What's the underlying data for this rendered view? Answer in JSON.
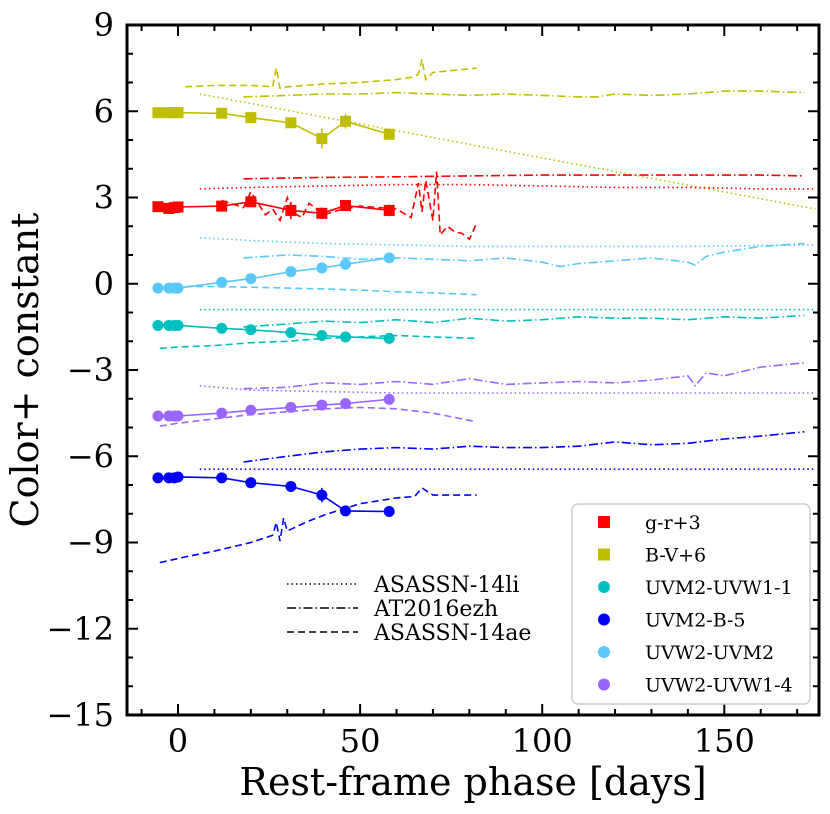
{
  "chart_data": {
    "type": "line",
    "xlabel": "Rest-frame phase [days]",
    "ylabel": "Color+ constant",
    "xlim": [
      -14,
      176
    ],
    "ylim": [
      -15,
      9
    ],
    "xticks": [
      0,
      50,
      100,
      150
    ],
    "yticks": [
      -15,
      -12,
      -9,
      -6,
      -3,
      0,
      3,
      6,
      9
    ],
    "xtick_labels": [
      "0",
      "50",
      "100",
      "150"
    ],
    "ytick_labels": [
      "−15",
      "−12",
      "−9",
      "−6",
      "−3",
      "0",
      "3",
      "6",
      "9"
    ],
    "colors": {
      "g-r": "#ff0000",
      "B-V": "#bfbf00",
      "UVM2-UVW1": "#00bfbf",
      "UVM2-B": "#0000ff",
      "UVW2-UVM2": "#5ac8fa",
      "UVW2-UVW1": "#9966ff"
    },
    "series": [
      {
        "name": "g-r+3",
        "key": "g-r",
        "marker": "square",
        "x": [
          -5.5,
          -2.5,
          -1,
          0,
          12,
          20,
          31,
          39.5,
          46,
          58
        ],
        "y": [
          2.68,
          2.62,
          2.65,
          2.67,
          2.7,
          2.85,
          2.55,
          2.45,
          2.72,
          2.55
        ],
        "yerr": [
          0.1,
          0.1,
          0.1,
          0.1,
          0.15,
          0.15,
          0.3,
          0.2,
          0.15,
          0.2
        ]
      },
      {
        "name": "B-V+6",
        "key": "B-V",
        "marker": "square",
        "x": [
          -5.5,
          -2.5,
          -1,
          0,
          12,
          20,
          31,
          39.5,
          46,
          58
        ],
        "y": [
          5.95,
          5.95,
          5.95,
          5.95,
          5.93,
          5.78,
          5.6,
          5.05,
          5.65,
          5.2
        ],
        "yerr": [
          0.1,
          0.1,
          0.1,
          0.1,
          0.1,
          0.15,
          0.15,
          0.35,
          0.25,
          0.2
        ]
      },
      {
        "name": "UVM2-UVW1-1",
        "key": "UVM2-UVW1",
        "marker": "circle",
        "x": [
          -5.5,
          -2.5,
          -1,
          0,
          12,
          20,
          31,
          39.5,
          46,
          58
        ],
        "y": [
          -1.45,
          -1.45,
          -1.45,
          -1.45,
          -1.55,
          -1.6,
          -1.7,
          -1.8,
          -1.85,
          -1.9
        ],
        "yerr": [
          0.05,
          0.05,
          0.05,
          0.05,
          0.1,
          0.1,
          0.12,
          0.12,
          0.12,
          0.12
        ]
      },
      {
        "name": "UVM2-B-5",
        "key": "UVM2-B",
        "marker": "circle",
        "x": [
          -5.5,
          -2.5,
          -1,
          0,
          12,
          20,
          31,
          39.5,
          46,
          58
        ],
        "y": [
          -6.75,
          -6.75,
          -6.75,
          -6.72,
          -6.75,
          -6.92,
          -7.05,
          -7.35,
          -7.9,
          -7.92
        ],
        "yerr": [
          0.05,
          0.05,
          0.05,
          0.05,
          0.1,
          0.1,
          0.12,
          0.25,
          0.12,
          0.12
        ]
      },
      {
        "name": "UVW2-UVM2",
        "key": "UVW2-UVM2",
        "marker": "circle",
        "x": [
          -5.5,
          -2.5,
          -1,
          0,
          12,
          20,
          31,
          39.5,
          46,
          58
        ],
        "y": [
          -0.15,
          -0.15,
          -0.15,
          -0.15,
          0.05,
          0.18,
          0.42,
          0.55,
          0.68,
          0.9
        ],
        "yerr": [
          0.05,
          0.05,
          0.05,
          0.05,
          0.08,
          0.08,
          0.1,
          0.1,
          0.1,
          0.1
        ]
      },
      {
        "name": "UVW2-UVW1-4",
        "key": "UVW2-UVW1",
        "marker": "circle",
        "x": [
          -5.5,
          -2.5,
          -1,
          0,
          12,
          20,
          31,
          39.5,
          46,
          58
        ],
        "y": [
          -4.6,
          -4.6,
          -4.6,
          -4.6,
          -4.5,
          -4.4,
          -4.3,
          -4.22,
          -4.17,
          -4.02
        ],
        "yerr": [
          0.05,
          0.05,
          0.05,
          0.05,
          0.08,
          0.08,
          0.1,
          0.1,
          0.1,
          0.1
        ]
      }
    ],
    "comparison_curves": [
      {
        "object": "ASASSN-14li",
        "style": "dotted",
        "key": "B-V",
        "x": [
          6,
          175
        ],
        "y": [
          6.6,
          2.6
        ]
      },
      {
        "object": "ASASSN-14li",
        "style": "dotted",
        "key": "g-r",
        "x": [
          6,
          20,
          40,
          60,
          80,
          100,
          120,
          140,
          160,
          175
        ],
        "y": [
          3.3,
          3.35,
          3.4,
          3.45,
          3.45,
          3.4,
          3.35,
          3.35,
          3.3,
          3.3
        ]
      },
      {
        "object": "ASASSN-14li",
        "style": "dotted",
        "key": "UVW2-UVM2",
        "x": [
          6,
          20,
          40,
          60,
          80,
          100,
          120,
          140,
          175
        ],
        "y": [
          1.6,
          1.5,
          1.4,
          1.35,
          1.3,
          1.3,
          1.3,
          1.3,
          1.35
        ]
      },
      {
        "object": "ASASSN-14li",
        "style": "dotted",
        "key": "UVM2-UVW1",
        "x": [
          6,
          50,
          100,
          150,
          175
        ],
        "y": [
          -0.9,
          -0.9,
          -0.9,
          -0.9,
          -0.9
        ]
      },
      {
        "object": "ASASSN-14li",
        "style": "dotted",
        "key": "UVW2-UVW1",
        "x": [
          6,
          20,
          40,
          60,
          80,
          100,
          140,
          175
        ],
        "y": [
          -3.55,
          -3.7,
          -3.75,
          -3.8,
          -3.8,
          -3.8,
          -3.8,
          -3.8
        ]
      },
      {
        "object": "ASASSN-14li",
        "style": "dotted",
        "key": "UVM2-B",
        "x": [
          6,
          50,
          100,
          150,
          175
        ],
        "y": [
          -6.45,
          -6.45,
          -6.45,
          -6.45,
          -6.45
        ]
      },
      {
        "object": "AT2016ezh",
        "style": "dashdot",
        "key": "B-V",
        "x": [
          18,
          30,
          40,
          50,
          60,
          70,
          80,
          90,
          100,
          110,
          115,
          120,
          130,
          140,
          150,
          160,
          172
        ],
        "y": [
          6.5,
          6.55,
          6.6,
          6.6,
          6.65,
          6.6,
          6.55,
          6.6,
          6.55,
          6.5,
          6.5,
          6.6,
          6.55,
          6.6,
          6.7,
          6.7,
          6.65
        ]
      },
      {
        "object": "AT2016ezh",
        "style": "dashdot",
        "key": "g-r",
        "x": [
          18,
          40,
          60,
          80,
          100,
          120,
          140,
          160,
          172
        ],
        "y": [
          3.65,
          3.7,
          3.72,
          3.75,
          3.78,
          3.78,
          3.78,
          3.78,
          3.75
        ]
      },
      {
        "object": "AT2016ezh",
        "style": "dashdot",
        "key": "UVW2-UVM2",
        "x": [
          18,
          30,
          40,
          50,
          60,
          70,
          80,
          90,
          100,
          105,
          110,
          120,
          130,
          140,
          142,
          145,
          150,
          160,
          172
        ],
        "y": [
          0.9,
          1.0,
          0.95,
          0.85,
          0.9,
          0.85,
          0.8,
          0.9,
          0.75,
          0.6,
          0.7,
          0.8,
          0.9,
          0.75,
          0.65,
          0.95,
          1.1,
          1.3,
          1.4
        ]
      },
      {
        "object": "AT2016ezh",
        "style": "dashdot",
        "key": "UVM2-UVW1",
        "x": [
          18,
          30,
          40,
          50,
          60,
          70,
          80,
          90,
          100,
          110,
          120,
          130,
          140,
          150,
          160,
          172
        ],
        "y": [
          -1.5,
          -1.4,
          -1.3,
          -1.35,
          -1.25,
          -1.35,
          -1.2,
          -1.3,
          -1.25,
          -1.15,
          -1.2,
          -1.2,
          -1.25,
          -1.15,
          -1.2,
          -1.1
        ]
      },
      {
        "object": "AT2016ezh",
        "style": "dashdot",
        "key": "UVW2-UVW1",
        "x": [
          18,
          30,
          40,
          50,
          60,
          70,
          80,
          90,
          100,
          110,
          120,
          130,
          140,
          142,
          145,
          150,
          160,
          172
        ],
        "y": [
          -3.65,
          -3.6,
          -3.45,
          -3.5,
          -3.4,
          -3.5,
          -3.3,
          -3.5,
          -3.45,
          -3.4,
          -3.45,
          -3.35,
          -3.2,
          -3.55,
          -3.1,
          -3.2,
          -2.9,
          -2.75
        ]
      },
      {
        "object": "AT2016ezh",
        "style": "dashdot",
        "key": "UVM2-B",
        "x": [
          18,
          30,
          40,
          50,
          60,
          70,
          80,
          90,
          100,
          110,
          120,
          130,
          140,
          150,
          160,
          172
        ],
        "y": [
          -6.2,
          -6.0,
          -5.85,
          -5.75,
          -5.7,
          -5.75,
          -5.65,
          -5.7,
          -5.7,
          -5.65,
          -5.5,
          -5.6,
          -5.55,
          -5.4,
          -5.3,
          -5.15
        ]
      },
      {
        "object": "ASASSN-14ae",
        "style": "dashed",
        "key": "B-V",
        "x": [
          2,
          10,
          20,
          26,
          27,
          28,
          30,
          40,
          50,
          60,
          65,
          66,
          67,
          68,
          70,
          82
        ],
        "y": [
          6.85,
          6.9,
          6.9,
          6.85,
          7.5,
          6.8,
          6.85,
          6.95,
          7.0,
          7.1,
          7.2,
          7.3,
          7.8,
          7.1,
          7.35,
          7.5
        ]
      },
      {
        "object": "ASASSN-14ae",
        "style": "dashed",
        "key": "g-r",
        "x": [
          12,
          18,
          20,
          24,
          26,
          28,
          30,
          32,
          34,
          36,
          38,
          40,
          44,
          50,
          60,
          64,
          66,
          67,
          68,
          70,
          71,
          72,
          74,
          76,
          78,
          80,
          82
        ],
        "y": [
          2.9,
          2.65,
          3.2,
          2.4,
          2.6,
          2.2,
          3.0,
          2.45,
          2.3,
          2.8,
          2.6,
          2.4,
          2.55,
          2.7,
          2.6,
          2.3,
          3.5,
          2.5,
          3.6,
          2.2,
          3.9,
          1.7,
          2.0,
          1.8,
          1.75,
          1.55,
          2.1
        ]
      },
      {
        "object": "ASASSN-14ae",
        "style": "dashed",
        "key": "UVW2-UVM2",
        "x": [
          2,
          10,
          20,
          30,
          40,
          50,
          60,
          70,
          82
        ],
        "y": [
          -0.1,
          -0.1,
          -0.12,
          -0.15,
          -0.18,
          -0.22,
          -0.28,
          -0.32,
          -0.38
        ]
      },
      {
        "object": "ASASSN-14ae",
        "style": "dashed",
        "key": "UVM2-UVW1",
        "x": [
          -5,
          0,
          10,
          20,
          30,
          40,
          50,
          60,
          70,
          82
        ],
        "y": [
          -2.25,
          -2.2,
          -2.15,
          -2.05,
          -2.0,
          -1.9,
          -1.85,
          -1.8,
          -1.85,
          -1.9
        ]
      },
      {
        "object": "ASASSN-14ae",
        "style": "dashed",
        "key": "UVW2-UVW1",
        "x": [
          -5,
          0,
          10,
          20,
          30,
          40,
          50,
          60,
          70,
          82
        ],
        "y": [
          -4.95,
          -4.85,
          -4.7,
          -4.55,
          -4.45,
          -4.35,
          -4.3,
          -4.35,
          -4.5,
          -4.8
        ]
      },
      {
        "object": "ASASSN-14ae",
        "style": "dashed",
        "key": "UVM2-B",
        "x": [
          -5,
          2,
          10,
          20,
          26,
          27,
          28,
          29,
          30,
          35,
          40,
          45,
          50,
          55,
          60,
          65,
          67,
          70,
          75,
          82
        ],
        "y": [
          -9.7,
          -9.5,
          -9.3,
          -9.0,
          -8.75,
          -8.3,
          -8.95,
          -8.15,
          -8.6,
          -8.3,
          -8.05,
          -7.85,
          -7.65,
          -7.55,
          -7.45,
          -7.4,
          -7.1,
          -7.35,
          -7.35,
          -7.35
        ]
      }
    ],
    "legend_styles": [
      {
        "label": "ASASSN-14li",
        "style": "dotted"
      },
      {
        "label": "AT2016ezh",
        "style": "dashdot"
      },
      {
        "label": "ASASSN-14ae",
        "style": "dashed"
      }
    ],
    "legend_colors": [
      {
        "label": "g-r+3",
        "key": "g-r",
        "marker": "square"
      },
      {
        "label": "B-V+6",
        "key": "B-V",
        "marker": "square"
      },
      {
        "label": "UVM2-UVW1-1",
        "key": "UVM2-UVW1",
        "marker": "circle"
      },
      {
        "label": "UVM2-B-5",
        "key": "UVM2-B",
        "marker": "circle"
      },
      {
        "label": "UVW2-UVM2",
        "key": "UVW2-UVM2",
        "marker": "circle"
      },
      {
        "label": "UVW2-UVW1-4",
        "key": "UVW2-UVW1",
        "marker": "circle"
      }
    ]
  }
}
